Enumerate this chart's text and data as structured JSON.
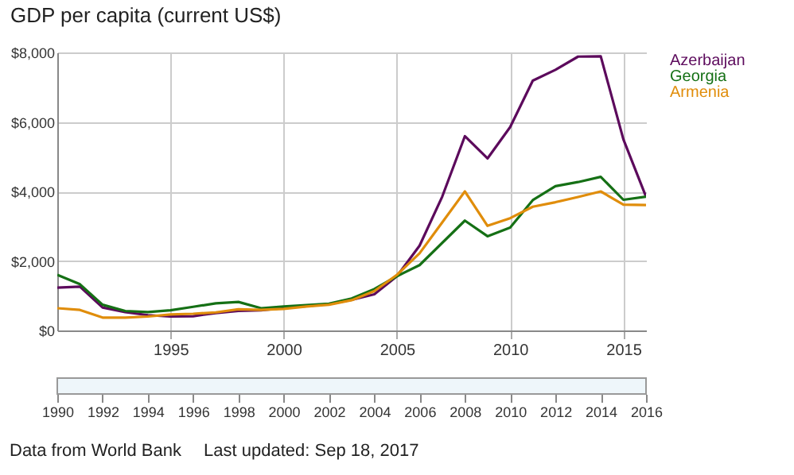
{
  "chart_data": {
    "type": "line",
    "title": "GDP per capita (current US$)",
    "x": [
      1990,
      1991,
      1992,
      1993,
      1994,
      1995,
      1996,
      1997,
      1998,
      1999,
      2000,
      2001,
      2002,
      2003,
      2004,
      2005,
      2006,
      2007,
      2008,
      2009,
      2010,
      2011,
      2012,
      2013,
      2014,
      2015,
      2016
    ],
    "series": [
      {
        "name": "Azerbaijan",
        "color": "#5c0a5c",
        "values": [
          1230,
          1260,
          660,
          530,
          440,
          400,
          410,
          500,
          560,
          580,
          650,
          700,
          760,
          880,
          1040,
          1560,
          2440,
          3850,
          5590,
          4950,
          5850,
          7190,
          7500,
          7880,
          7890,
          5500,
          3850
        ]
      },
      {
        "name": "Georgia",
        "color": "#157015",
        "values": [
          1600,
          1330,
          740,
          560,
          530,
          580,
          680,
          780,
          820,
          640,
          690,
          730,
          770,
          920,
          1190,
          1560,
          1880,
          2520,
          3160,
          2710,
          2960,
          3750,
          4150,
          4270,
          4420,
          3760,
          3850
        ]
      },
      {
        "name": "Armenia",
        "color": "#e08d0b",
        "values": [
          640,
          590,
          370,
          370,
          400,
          460,
          480,
          520,
          610,
          590,
          620,
          690,
          740,
          870,
          1130,
          1600,
          2220,
          3110,
          4000,
          3010,
          3230,
          3560,
          3690,
          3840,
          4000,
          3620,
          3610
        ]
      }
    ],
    "xlim": [
      1990,
      2016
    ],
    "xticks": [
      1995,
      2000,
      2005,
      2010,
      2015
    ],
    "x2lim": [
      1990,
      2016
    ],
    "x2ticks": [
      1990,
      1992,
      1994,
      1996,
      1998,
      2000,
      2002,
      2004,
      2006,
      2008,
      2010,
      2012,
      2014,
      2016
    ],
    "ylim": [
      0,
      8000
    ],
    "yticks": [
      {
        "value": 0,
        "label": "$0"
      },
      {
        "value": 2000,
        "label": "$2,000"
      },
      {
        "value": 4000,
        "label": "$4,000"
      },
      {
        "value": 6000,
        "label": "$6,000"
      },
      {
        "value": 8000,
        "label": "$8,000"
      }
    ],
    "grid": true,
    "legend": "right",
    "line_style": "solid",
    "annotations": [
      "Data from World Bank",
      "Last updated: Sep 18, 2017"
    ]
  }
}
